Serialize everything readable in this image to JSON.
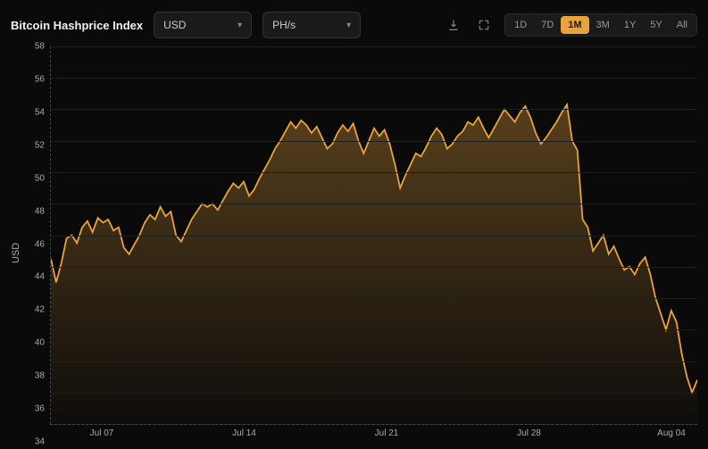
{
  "header": {
    "title": "Bitcoin Hashprice Index",
    "dropdown_currency": {
      "label": "USD"
    },
    "dropdown_unit": {
      "label": "PH/s"
    },
    "ranges": [
      "1D",
      "7D",
      "1M",
      "3M",
      "1Y",
      "5Y",
      "All"
    ],
    "active_range": "1M"
  },
  "chart": {
    "type": "area",
    "line_color": "#e8a33d",
    "line_width": 1.8,
    "fill_top_color": "rgba(232,163,61,0.35)",
    "fill_bottom_color": "rgba(232,163,61,0.02)",
    "background_color": "#0a0a0a",
    "grid_color": "#1e1e1e",
    "axis_text_color": "#aaaaaa",
    "axis_fontsize": 10,
    "ylabel": "USD",
    "ylim": [
      34,
      58
    ],
    "yticks": [
      34,
      36,
      38,
      40,
      42,
      44,
      46,
      48,
      50,
      52,
      54,
      56,
      58
    ],
    "xticks": [
      {
        "pos": 0.08,
        "label": "Jul 07"
      },
      {
        "pos": 0.3,
        "label": "Jul 14"
      },
      {
        "pos": 0.52,
        "label": "Jul 21"
      },
      {
        "pos": 0.74,
        "label": "Jul 28"
      },
      {
        "pos": 0.96,
        "label": "Aug 04"
      }
    ],
    "data": [
      44.5,
      43.0,
      44.2,
      45.8,
      46.0,
      45.5,
      46.5,
      46.9,
      46.2,
      47.1,
      46.8,
      47.0,
      46.3,
      46.5,
      45.2,
      44.8,
      45.4,
      46.0,
      46.8,
      47.3,
      47.0,
      47.8,
      47.2,
      47.5,
      46.0,
      45.6,
      46.3,
      47.0,
      47.5,
      48.0,
      47.8,
      48.0,
      47.6,
      48.2,
      48.8,
      49.3,
      49.0,
      49.4,
      48.5,
      48.9,
      49.6,
      50.2,
      50.8,
      51.5,
      52.0,
      52.6,
      53.2,
      52.8,
      53.3,
      53.0,
      52.5,
      52.9,
      52.2,
      51.5,
      51.8,
      52.5,
      53.0,
      52.6,
      53.1,
      52.0,
      51.2,
      52.0,
      52.8,
      52.3,
      52.7,
      51.8,
      50.5,
      49.0,
      49.8,
      50.5,
      51.2,
      51.0,
      51.6,
      52.3,
      52.8,
      52.4,
      51.5,
      51.8,
      52.3,
      52.6,
      53.2,
      53.0,
      53.5,
      52.8,
      52.2,
      52.8,
      53.4,
      54.0,
      53.6,
      53.2,
      53.8,
      54.2,
      53.5,
      52.5,
      51.8,
      52.2,
      52.7,
      53.2,
      53.8,
      54.3,
      52.0,
      51.4,
      47.0,
      46.5,
      45.0,
      45.5,
      46.0,
      44.8,
      45.3,
      44.5,
      43.8,
      44.0,
      43.5,
      44.2,
      44.6,
      43.5,
      42.0,
      41.0,
      40.0,
      41.2,
      40.5,
      38.5,
      37.0,
      36.0,
      36.8
    ]
  }
}
